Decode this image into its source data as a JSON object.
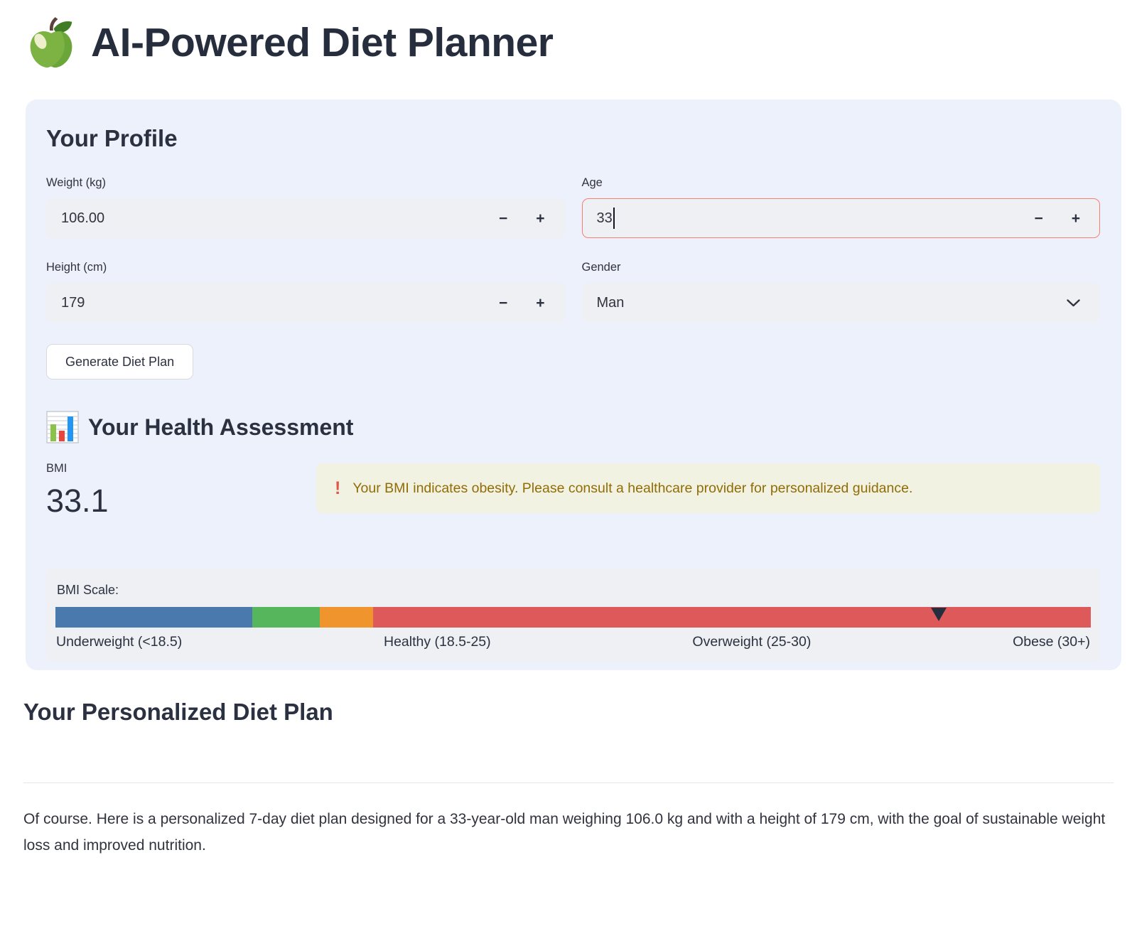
{
  "header": {
    "title": "AI-Powered Diet Planner",
    "logo": "green-apple"
  },
  "ui": {
    "minus": "−",
    "plus": "+"
  },
  "profile": {
    "heading": "Your Profile",
    "fields": {
      "weight": {
        "label": "Weight (kg)",
        "value": "106.00"
      },
      "age": {
        "label": "Age",
        "value": "33"
      },
      "height": {
        "label": "Height (cm)",
        "value": "179"
      },
      "gender": {
        "label": "Gender",
        "value": "Man"
      }
    },
    "generate_button": "Generate Diet Plan"
  },
  "assessment": {
    "heading": "Your Health Assessment",
    "bmi_label": "BMI",
    "bmi_value": "33.1",
    "warning": {
      "icon": "!",
      "text": "Your BMI indicates obesity. Please consult a healthcare provider for personalized guidance.",
      "text_color": "#926c05",
      "bg_color": "#f1f2e2"
    },
    "scale": {
      "label": "BMI Scale:",
      "segments": [
        {
          "name": "underweight",
          "label": "Underweight (<18.5)",
          "color": "#4a79ad",
          "width_pct": 19.0
        },
        {
          "name": "healthy",
          "label": "Healthy (18.5-25)",
          "color": "#55b65c",
          "width_pct": 6.5
        },
        {
          "name": "overweight",
          "label": "Overweight (25-30)",
          "color": "#f0942d",
          "width_pct": 5.2
        },
        {
          "name": "obese",
          "label": "Obese (30+)",
          "color": "#de5959",
          "width_pct": 69.3
        }
      ],
      "marker_pct": 85.3,
      "marker_color": "#252e3e"
    }
  },
  "plan": {
    "heading": "Your Personalized Diet Plan",
    "paragraph": "Of course. Here is a personalized 7-day diet plan designed for a 33-year-old man weighing 106.0 kg and with a height of 179 cm, with the goal of sustainable weight loss and improved nutrition."
  }
}
